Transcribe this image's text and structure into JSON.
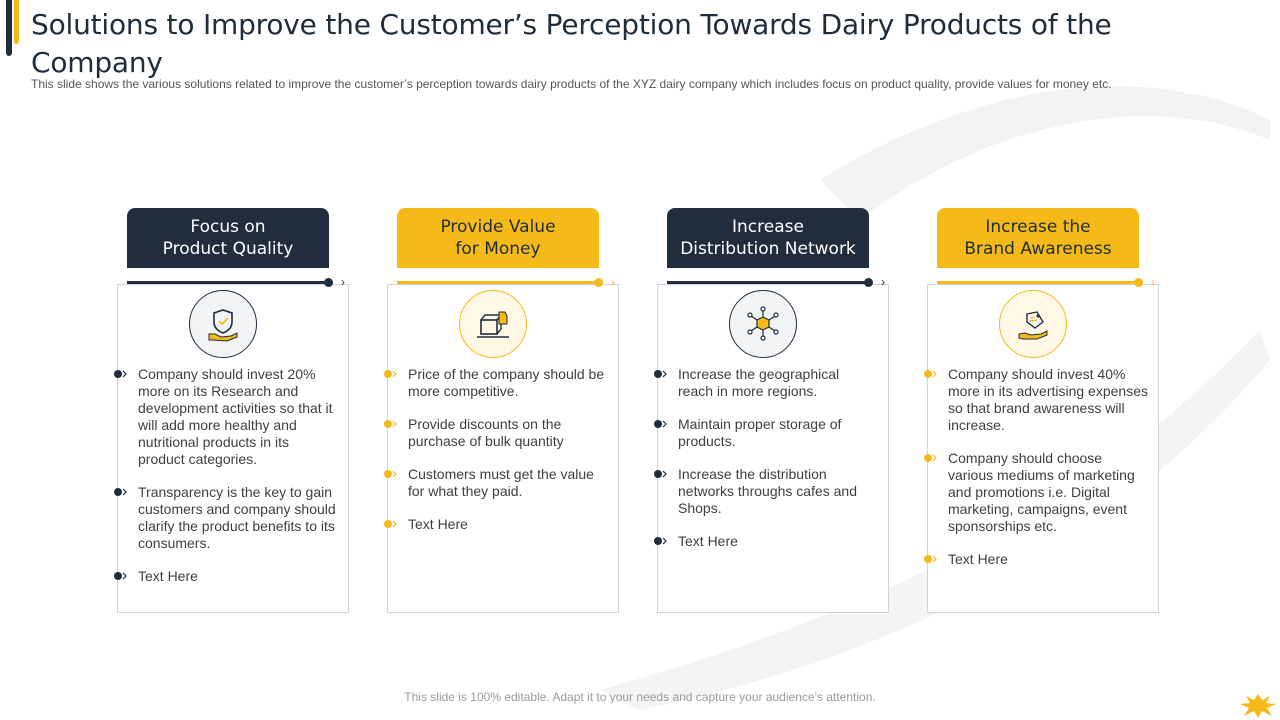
{
  "title": "Solutions to Improve the Customer’s Perception Towards Dairy Products of the Company",
  "subtitle": "This slide shows the various  solutions related to improve  the customer’s perception towards dairy products of the XYZ dairy company which includes focus on product quality, provide  values for money etc.",
  "colors": {
    "navy": "#1f2d3d",
    "yellow": "#f5b918"
  },
  "cards": [
    {
      "header": "Focus on\nProduct Quality",
      "icon": "hand-shield-icon",
      "bullets": [
        "Company should invest 20% more on its Research and development activities so that it will add more healthy and nutritional products in its product categories.",
        "Transparency is the key to gain customers and company should clarify the product benefits to its consumers.",
        "Text Here"
      ]
    },
    {
      "header": "Provide Value\nfor Money",
      "icon": "box-price-tag-icon",
      "bullets": [
        "Price of the company should be more competitive.",
        "Provide discounts on the purchase of bulk quantity",
        "Customers must get the value for what they paid.",
        "Text Here"
      ]
    },
    {
      "header": "Increase\nDistribution Network",
      "icon": "box-network-icon",
      "bullets": [
        "Increase the geographical reach in more regions.",
        "Maintain proper storage of products.",
        "Increase the distribution networks throughs cafes and Shops.",
        "Text Here"
      ]
    },
    {
      "header": "Increase the\nBrand Awareness",
      "icon": "hand-tag-icon",
      "bullets": [
        "Company should invest 40% more in its advertising expenses so that brand awareness will increase.",
        "Company should choose various mediums of marketing and promotions i.e. Digital marketing, campaigns, event sponsorships etc.",
        "Text Here"
      ]
    }
  ],
  "footer": "This slide is 100% editable. Adapt it to your needs and capture your audience’s attention."
}
